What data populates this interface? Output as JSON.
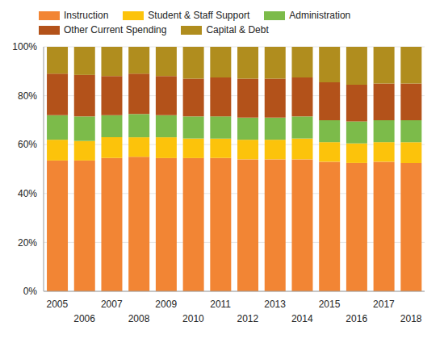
{
  "chart_data": {
    "type": "bar",
    "stacked": true,
    "grid": true,
    "legend": "top",
    "categories": [
      "2005",
      "2006",
      "2007",
      "2008",
      "2009",
      "2010",
      "2011",
      "2012",
      "2013",
      "2014",
      "2015",
      "2016",
      "2017",
      "2018"
    ],
    "series": [
      {
        "name": "Instruction",
        "color": "#f28534",
        "values": [
          53.5,
          53.5,
          54.5,
          55,
          54.5,
          54.5,
          54.5,
          54,
          54,
          54,
          53,
          52.5,
          53,
          52.5
        ]
      },
      {
        "name": "Student & Staff Support",
        "color": "#fcc30b",
        "values": [
          8.5,
          8,
          8.5,
          8,
          8.5,
          8,
          8,
          8,
          8,
          8.5,
          8,
          8,
          8,
          8.5
        ]
      },
      {
        "name": "Administration",
        "color": "#7cbb4a",
        "values": [
          10,
          10,
          9,
          9.5,
          9,
          9,
          9,
          9,
          9,
          9,
          9,
          9,
          9,
          9
        ]
      },
      {
        "name": "Other Current Spending",
        "color": "#b3521a",
        "values": [
          17,
          17,
          16,
          16.5,
          16,
          15.5,
          16,
          16,
          16,
          16,
          15.5,
          15,
          15,
          15
        ]
      },
      {
        "name": "Capital & Debt",
        "color": "#b08d1e",
        "values": [
          11,
          11.5,
          12,
          11,
          12,
          13,
          12.5,
          13,
          13,
          12.5,
          14.5,
          15.5,
          15,
          15
        ]
      }
    ],
    "ylim": [
      0,
      100
    ],
    "yticks": [
      {
        "value": 0,
        "label": "0%"
      },
      {
        "value": 20,
        "label": "20%"
      },
      {
        "value": 40,
        "label": "40%"
      },
      {
        "value": 60,
        "label": "60%"
      },
      {
        "value": 80,
        "label": "80%"
      },
      {
        "value": 100,
        "label": "100%"
      }
    ]
  }
}
